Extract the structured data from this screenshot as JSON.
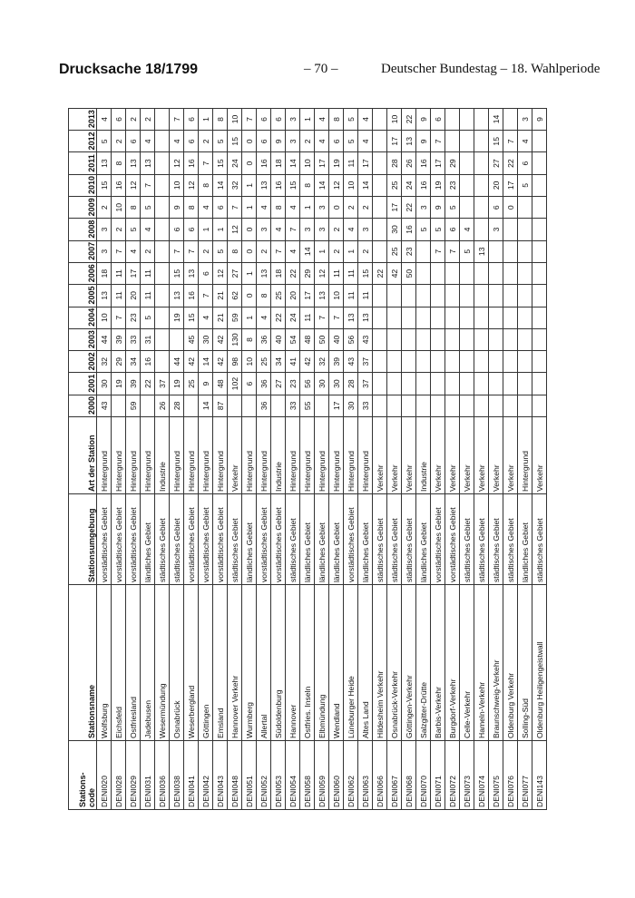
{
  "header": {
    "doc_label": "Drucksache 18/1799",
    "page": "– 70 –",
    "publisher": "Deutscher Bundestag – 18. Wahlperiode"
  },
  "table": {
    "columns": [
      "Stations-\ncode",
      "Stationsname",
      "Stationsumgebung",
      "Art der Station",
      "2000",
      "2001",
      "2002",
      "2003",
      "2004",
      "2005",
      "2006",
      "2007",
      "2008",
      "2009",
      "2010",
      "2011",
      "2012",
      "2013"
    ],
    "rows": [
      [
        "DENI020",
        "Wolfsburg",
        "vorstädtisches Gebiet",
        "Hintergrund",
        "43",
        "30",
        "32",
        "44",
        "10",
        "13",
        "18",
        "3",
        "3",
        "2",
        "15",
        "13",
        "5",
        "4"
      ],
      [
        "DENI028",
        "Eichsfeld",
        "vorstädtisches Gebiet",
        "Hintergrund",
        "",
        "19",
        "29",
        "39",
        "7",
        "11",
        "11",
        "7",
        "2",
        "10",
        "16",
        "8",
        "2",
        "6"
      ],
      [
        "DENI029",
        "Ostfriesland",
        "vorstädtisches Gebiet",
        "Hintergrund",
        "59",
        "39",
        "34",
        "33",
        "23",
        "20",
        "17",
        "4",
        "5",
        "8",
        "12",
        "13",
        "6",
        "2"
      ],
      [
        "DENI031",
        "Jadebusen",
        "ländliches Gebiet",
        "Hintergrund",
        "",
        "22",
        "16",
        "31",
        "5",
        "11",
        "11",
        "2",
        "4",
        "5",
        "7",
        "13",
        "4",
        "2"
      ],
      [
        "DENI036",
        "Wesermündung",
        "städtisches Gebiet",
        "Industrie",
        "26",
        "37",
        "",
        "",
        "",
        "",
        "",
        "",
        "",
        "",
        "",
        "",
        "",
        ""
      ],
      [
        "DENI038",
        "Osnabrück",
        "städtisches Gebiet",
        "Hintergrund",
        "28",
        "19",
        "44",
        "",
        "19",
        "13",
        "15",
        "7",
        "6",
        "9",
        "10",
        "12",
        "4",
        "7"
      ],
      [
        "DENI041",
        "Weserbergland",
        "vorstädtisches Gebiet",
        "Hintergrund",
        "",
        "25",
        "42",
        "45",
        "15",
        "16",
        "13",
        "7",
        "6",
        "8",
        "12",
        "16",
        "6",
        "6"
      ],
      [
        "DENI042",
        "Göttingen",
        "vorstädtisches Gebiet",
        "Hintergrund",
        "14",
        "9",
        "14",
        "30",
        "4",
        "7",
        "6",
        "2",
        "1",
        "4",
        "8",
        "7",
        "2",
        "1"
      ],
      [
        "DENI043",
        "Emsland",
        "vorstädtisches Gebiet",
        "Hintergrund",
        "87",
        "48",
        "42",
        "42",
        "21",
        "21",
        "12",
        "5",
        "1",
        "6",
        "14",
        "15",
        "5",
        "8"
      ],
      [
        "DENI048",
        "Hannover Verkehr",
        "städtisches Gebiet",
        "Verkehr",
        "",
        "102",
        "98",
        "130",
        "59",
        "62",
        "27",
        "8",
        "12",
        "7",
        "32",
        "24",
        "15",
        "10"
      ],
      [
        "DENI051",
        "Wurmberg",
        "ländliches Gebiet",
        "Hintergrund",
        "",
        "6",
        "10",
        "8",
        "1",
        "0",
        "1",
        "0",
        "0",
        "1",
        "1",
        "0",
        "0",
        "7"
      ],
      [
        "DENI052",
        "Allertal",
        "vorstädtisches Gebiet",
        "Hintergrund",
        "36",
        "36",
        "25",
        "36",
        "4",
        "8",
        "13",
        "2",
        "3",
        "4",
        "13",
        "16",
        "6",
        "6"
      ],
      [
        "DENI053",
        "Südoldenburg",
        "vorstädtisches Gebiet",
        "Industrie",
        "",
        "27",
        "34",
        "40",
        "22",
        "25",
        "18",
        "7",
        "4",
        "8",
        "16",
        "18",
        "9",
        "6"
      ],
      [
        "DENI054",
        "Hannover",
        "städtisches Gebiet",
        "Hintergrund",
        "33",
        "23",
        "41",
        "54",
        "24",
        "20",
        "22",
        "4",
        "7",
        "4",
        "15",
        "14",
        "3",
        "3"
      ],
      [
        "DENI058",
        "Ostfries. Inseln",
        "ländliches Gebiet",
        "Hintergrund",
        "55",
        "56",
        "42",
        "48",
        "11",
        "17",
        "29",
        "14",
        "3",
        "1",
        "8",
        "10",
        "2",
        "1"
      ],
      [
        "DENI059",
        "Elbmündung",
        "ländliches Gebiet",
        "Hintergrund",
        "",
        "30",
        "32",
        "50",
        "7",
        "13",
        "12",
        "1",
        "3",
        "3",
        "14",
        "17",
        "4",
        "4"
      ],
      [
        "DENI060",
        "Wendland",
        "ländliches Gebiet",
        "Hintergrund",
        "17",
        "30",
        "39",
        "40",
        "7",
        "10",
        "11",
        "2",
        "2",
        "0",
        "12",
        "19",
        "6",
        "8"
      ],
      [
        "DENI062",
        "Lüneburger Heide",
        "vorstädtisches Gebiet",
        "Hintergrund",
        "30",
        "28",
        "43",
        "56",
        "13",
        "11",
        "11",
        "1",
        "4",
        "2",
        "10",
        "11",
        "5",
        "5"
      ],
      [
        "DENI063",
        "Altes Land",
        "ländliches Gebiet",
        "Hintergrund",
        "33",
        "37",
        "37",
        "43",
        "13",
        "11",
        "15",
        "2",
        "3",
        "2",
        "14",
        "17",
        "4",
        "4"
      ],
      [
        "DENI066",
        "Hildesheim Verkehr",
        "städtisches Gebiet",
        "Verkehr",
        "",
        "",
        "",
        "",
        "",
        "",
        "22",
        "",
        "",
        "",
        "",
        "",
        "",
        ""
      ],
      [
        "DENI067",
        "Osnabrück-Verkehr",
        "städtisches Gebiet",
        "Verkehr",
        "",
        "",
        "",
        "",
        "",
        "",
        "42",
        "25",
        "30",
        "17",
        "25",
        "28",
        "17",
        "10"
      ],
      [
        "DENI068",
        "Göttingen-Verkehr",
        "städtisches Gebiet",
        "Verkehr",
        "",
        "",
        "",
        "",
        "",
        "",
        "50",
        "23",
        "16",
        "22",
        "24",
        "26",
        "13",
        "22"
      ],
      [
        "DENI070",
        "Salzgitter-Drütte",
        "ländliches Gebiet",
        "Industrie",
        "",
        "",
        "",
        "",
        "",
        "",
        "",
        "",
        "5",
        "3",
        "16",
        "16",
        "9",
        "9"
      ],
      [
        "DENI071",
        "Barbis-Verkehr",
        "vorstädtisches Gebiet",
        "Verkehr",
        "",
        "",
        "",
        "",
        "",
        "",
        "",
        "7",
        "5",
        "9",
        "19",
        "17",
        "7",
        "6"
      ],
      [
        "DENI072",
        "Burgdorf-Verkehr",
        "vorstädtisches Gebiet",
        "Verkehr",
        "",
        "",
        "",
        "",
        "",
        "",
        "",
        "7",
        "6",
        "5",
        "23",
        "29",
        "",
        ""
      ],
      [
        "DENI073",
        "Celle-Verkehr",
        "städtisches Gebiet",
        "Verkehr",
        "",
        "",
        "",
        "",
        "",
        "",
        "",
        "5",
        "4",
        "",
        "",
        "",
        "",
        ""
      ],
      [
        "DENI074",
        "Hameln-Verkehr",
        "städtisches Gebiet",
        "Verkehr",
        "",
        "",
        "",
        "",
        "",
        "",
        "",
        "13",
        "",
        "",
        "",
        "",
        "",
        ""
      ],
      [
        "DENI075",
        "Braunschweig-Verkehr",
        "städtisches Gebiet",
        "Verkehr",
        "",
        "",
        "",
        "",
        "",
        "",
        "",
        "",
        "3",
        "6",
        "20",
        "27",
        "15",
        "14"
      ],
      [
        "DENI076",
        "Oldenburg Verkehr",
        "städtisches Gebiet",
        "Verkehr",
        "",
        "",
        "",
        "",
        "",
        "",
        "",
        "",
        "",
        "0",
        "17",
        "22",
        "7",
        ""
      ],
      [
        "DENI077",
        "Solling-Süd",
        "ländliches Gebiet",
        "Hintergrund",
        "",
        "",
        "",
        "",
        "",
        "",
        "",
        "",
        "",
        "",
        "5",
        "6",
        "4",
        "3"
      ],
      [
        "DENI143",
        "Oldenburg Heiligengeistwall",
        "städtisches Gebiet",
        "Verkehr",
        "",
        "",
        "",
        "",
        "",
        "",
        "",
        "",
        "",
        "",
        "",
        "",
        "",
        "9"
      ]
    ]
  }
}
